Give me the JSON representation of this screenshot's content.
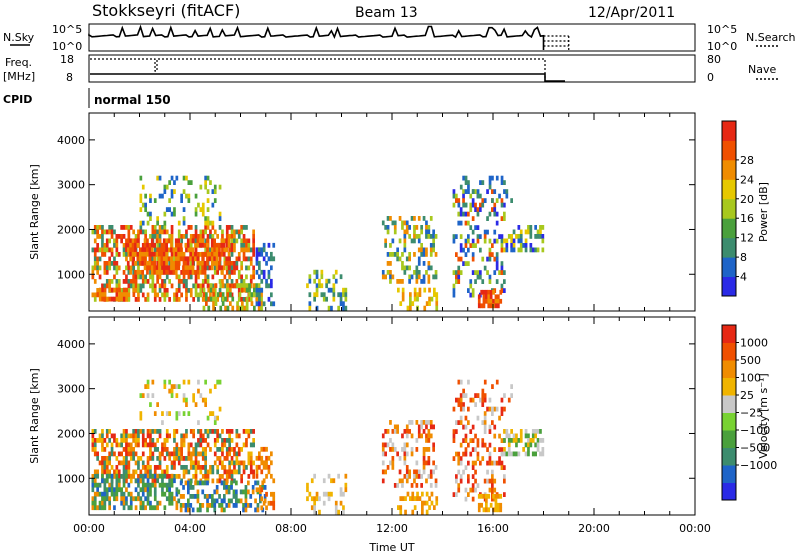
{
  "header": {
    "station": "Stokkseyri (fitACF)",
    "beam": "Beam 13",
    "date": "12/Apr/2011"
  },
  "nsky_panel": {
    "left_label": "N.Sky",
    "right_label": "N.Search",
    "left_ticks": [
      "10^5",
      "10^0"
    ],
    "right_ticks": [
      "10^5",
      "10^0"
    ],
    "spikes_utc_hours": [
      1.3,
      2.0,
      2.5,
      3.2,
      4.2,
      4.8,
      5.3,
      5.9,
      7.1,
      9.0,
      9.6,
      9.8,
      12.1,
      13.5,
      14.6,
      15.9,
      16.1,
      16.4,
      17.3,
      17.6,
      17.8
    ]
  },
  "freq_panel": {
    "left_label_1": "Freq.",
    "left_label_2": "[MHz]",
    "right_label": "Nave",
    "left_ticks": [
      "18",
      "8"
    ],
    "right_ticks": [
      "80",
      "0"
    ]
  },
  "cpid": {
    "label": "CPID",
    "mode": "normal 150"
  },
  "chart_data": [
    {
      "type": "heatmap",
      "name": "power",
      "ylabel": "Slant Range [km]",
      "colorbar_label": "Power [dB]",
      "x_range_utc_hours": [
        0,
        24
      ],
      "y_range_km": [
        180,
        4600
      ],
      "y_ticks": [
        1000,
        2000,
        3000,
        4000
      ],
      "colorbar_ticks": [
        "4",
        "8",
        "12",
        "16",
        "20",
        "24",
        "28"
      ],
      "colorbar_colors": [
        "#2a2ae6",
        "#1e64c8",
        "#3c8c6e",
        "#4aa03c",
        "#a8c81e",
        "#e6c800",
        "#f08c00",
        "#f05000",
        "#e62814"
      ],
      "regions": [
        {
          "t": [
            0.1,
            6.5
          ],
          "r": [
            400,
            2100
          ],
          "c": [
            "#e62814",
            "#f05000",
            "#f08c00",
            "#a8c81e",
            "#3c8c6e"
          ],
          "d": 0.55
        },
        {
          "t": [
            1.5,
            5.5
          ],
          "r": [
            1000,
            1800
          ],
          "c": [
            "#e62814",
            "#f05000",
            "#f08c00"
          ],
          "d": 0.7
        },
        {
          "t": [
            0.2,
            1.8
          ],
          "r": [
            400,
            700
          ],
          "c": [
            "#e62814",
            "#f05000",
            "#f08c00"
          ],
          "d": 0.6
        },
        {
          "t": [
            4.5,
            6.8
          ],
          "r": [
            280,
            800
          ],
          "c": [
            "#f05000",
            "#f08c00",
            "#a8c81e",
            "#4aa03c"
          ],
          "d": 0.5
        },
        {
          "t": [
            2.0,
            5.2
          ],
          "r": [
            2100,
            3200
          ],
          "c": [
            "#a8c81e",
            "#4aa03c",
            "#1e64c8",
            "#e6c800"
          ],
          "d": 0.22
        },
        {
          "t": [
            6.6,
            7.3
          ],
          "r": [
            300,
            1700
          ],
          "c": [
            "#1e64c8",
            "#3c8c6e",
            "#2a2ae6"
          ],
          "d": 0.4
        },
        {
          "t": [
            8.6,
            10.2
          ],
          "r": [
            250,
            1100
          ],
          "c": [
            "#a8c81e",
            "#e6c800",
            "#3c8c6e",
            "#1e64c8"
          ],
          "d": 0.3
        },
        {
          "t": [
            11.6,
            13.7
          ],
          "r": [
            800,
            2300
          ],
          "c": [
            "#1e64c8",
            "#3c8c6e",
            "#a8c81e",
            "#f08c00"
          ],
          "d": 0.33
        },
        {
          "t": [
            12.2,
            13.8
          ],
          "r": [
            250,
            700
          ],
          "c": [
            "#e6c800",
            "#a8c81e",
            "#f08c00"
          ],
          "d": 0.35
        },
        {
          "t": [
            14.4,
            16.4
          ],
          "r": [
            500,
            2900
          ],
          "c": [
            "#1e64c8",
            "#3c8c6e",
            "#a8c81e",
            "#f05000",
            "#2a2ae6"
          ],
          "d": 0.28
        },
        {
          "t": [
            15.4,
            16.3
          ],
          "r": [
            250,
            650
          ],
          "c": [
            "#e62814",
            "#f05000",
            "#f08c00"
          ],
          "d": 0.75
        },
        {
          "t": [
            16.4,
            18.0
          ],
          "r": [
            1500,
            2100
          ],
          "c": [
            "#1e64c8",
            "#3c8c6e",
            "#a8c81e",
            "#e6c800",
            "#2a2ae6"
          ],
          "d": 0.55
        },
        {
          "t": [
            14.5,
            16.8
          ],
          "r": [
            2500,
            3200
          ],
          "c": [
            "#1e64c8",
            "#3c8c6e"
          ],
          "d": 0.15
        }
      ]
    },
    {
      "type": "heatmap",
      "name": "velocity",
      "xlabel": "Time UT",
      "ylabel": "Slant Range [km]",
      "colorbar_label": "Velocity [m s⁻¹]",
      "x_range_utc_hours": [
        0,
        24
      ],
      "y_range_km": [
        180,
        4600
      ],
      "x_ticks": [
        "00:00",
        "04:00",
        "08:00",
        "12:00",
        "16:00",
        "20:00",
        "00:00"
      ],
      "y_ticks": [
        1000,
        2000,
        3000,
        4000
      ],
      "colorbar_ticks": [
        "1000",
        "500",
        "100",
        "25",
        "−25",
        "−100",
        "−500",
        "−1000"
      ],
      "colorbar_colors": [
        "#2a2ae6",
        "#1e64c8",
        "#3c8c6e",
        "#4aa03c",
        "#78d232",
        "#c8c8c8",
        "#f0b400",
        "#f08c00",
        "#f05000",
        "#e62814"
      ],
      "regions": [
        {
          "t": [
            0.1,
            6.5
          ],
          "r": [
            900,
            2100
          ],
          "c": [
            "#f08c00",
            "#f05000",
            "#e62814",
            "#f0b400",
            "#3c8c6e"
          ],
          "d": 0.55
        },
        {
          "t": [
            0.1,
            3.5
          ],
          "r": [
            350,
            1100
          ],
          "c": [
            "#3c8c6e",
            "#4aa03c",
            "#1e64c8",
            "#f08c00"
          ],
          "d": 0.55
        },
        {
          "t": [
            3.5,
            7.0
          ],
          "r": [
            300,
            950
          ],
          "c": [
            "#3c8c6e",
            "#1e64c8",
            "#4aa03c",
            "#f08c00"
          ],
          "d": 0.45
        },
        {
          "t": [
            2.0,
            5.2
          ],
          "r": [
            2100,
            3200
          ],
          "c": [
            "#f08c00",
            "#c8c8c8",
            "#78d232",
            "#f0b400"
          ],
          "d": 0.22
        },
        {
          "t": [
            6.6,
            7.3
          ],
          "r": [
            300,
            1700
          ],
          "c": [
            "#f08c00",
            "#f05000"
          ],
          "d": 0.4
        },
        {
          "t": [
            8.6,
            10.2
          ],
          "r": [
            250,
            1100
          ],
          "c": [
            "#f08c00",
            "#f0b400",
            "#c8c8c8"
          ],
          "d": 0.3
        },
        {
          "t": [
            11.6,
            13.7
          ],
          "r": [
            800,
            2300
          ],
          "c": [
            "#c8c8c8",
            "#f05000",
            "#e62814",
            "#f08c00"
          ],
          "d": 0.33
        },
        {
          "t": [
            12.2,
            13.8
          ],
          "r": [
            250,
            700
          ],
          "c": [
            "#f08c00",
            "#f0b400"
          ],
          "d": 0.35
        },
        {
          "t": [
            14.4,
            16.4
          ],
          "r": [
            500,
            2900
          ],
          "c": [
            "#c8c8c8",
            "#f05000",
            "#e62814",
            "#f08c00"
          ],
          "d": 0.28
        },
        {
          "t": [
            15.4,
            16.3
          ],
          "r": [
            250,
            650
          ],
          "c": [
            "#f0b400",
            "#f08c00"
          ],
          "d": 0.75
        },
        {
          "t": [
            16.4,
            18.0
          ],
          "r": [
            1500,
            2100
          ],
          "c": [
            "#c8c8c8",
            "#f0b400",
            "#4aa03c"
          ],
          "d": 0.55
        },
        {
          "t": [
            14.5,
            16.8
          ],
          "r": [
            2500,
            3200
          ],
          "c": [
            "#c8c8c8",
            "#f05000"
          ],
          "d": 0.15
        }
      ]
    }
  ]
}
